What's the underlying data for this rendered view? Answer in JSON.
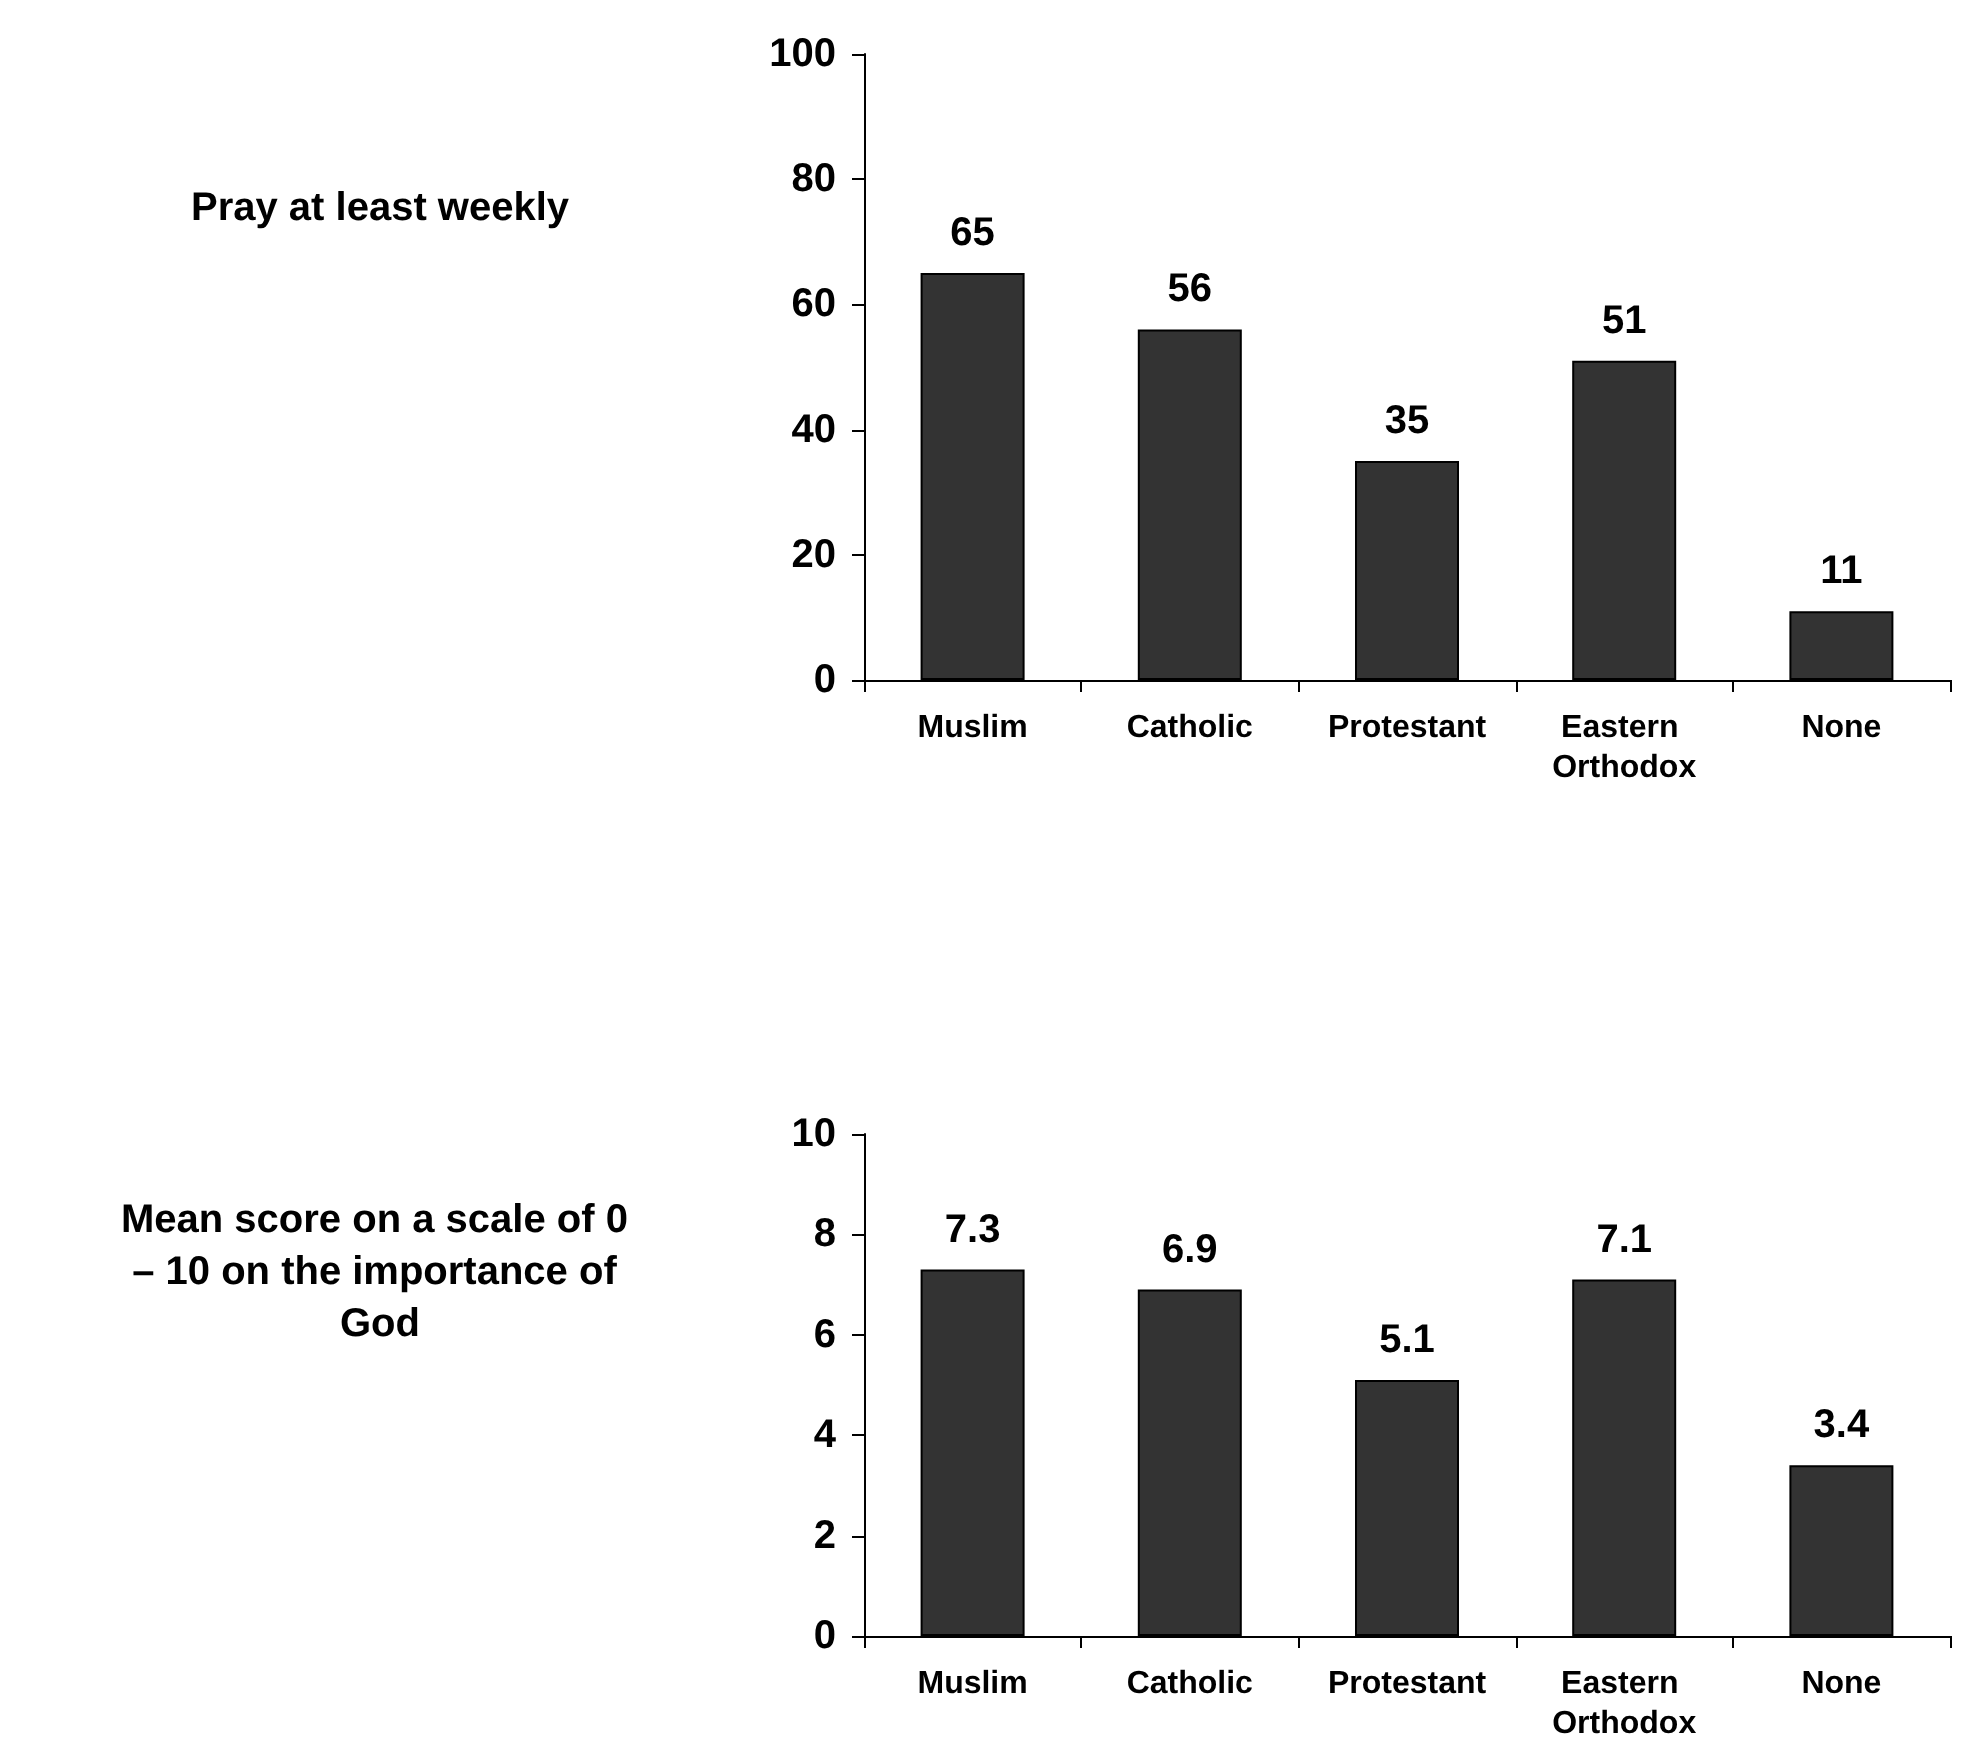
{
  "chart_data": [
    {
      "type": "bar",
      "title": "Pray at least weekly",
      "categories": [
        "Muslim",
        "Catholic",
        "Protestant",
        "Eastern Orthodox",
        "None"
      ],
      "values": [
        65,
        56,
        35,
        51,
        11
      ],
      "color": "#333333",
      "ylim": [
        0,
        100
      ],
      "yticks": [
        0,
        20,
        40,
        60,
        80,
        100
      ],
      "data_labels": true,
      "grid": false
    },
    {
      "type": "bar",
      "title": "Mean score on a scale of 0 – 10 on the importance of God",
      "categories": [
        "Muslim",
        "Catholic",
        "Protestant",
        "Eastern Orthodox",
        "None"
      ],
      "values": [
        7.3,
        6.9,
        5.1,
        7.1,
        3.4
      ],
      "color": "#333333",
      "ylim": [
        0,
        10
      ],
      "yticks": [
        0,
        2,
        4,
        6,
        8,
        10
      ],
      "data_labels": true,
      "grid": false
    }
  ]
}
